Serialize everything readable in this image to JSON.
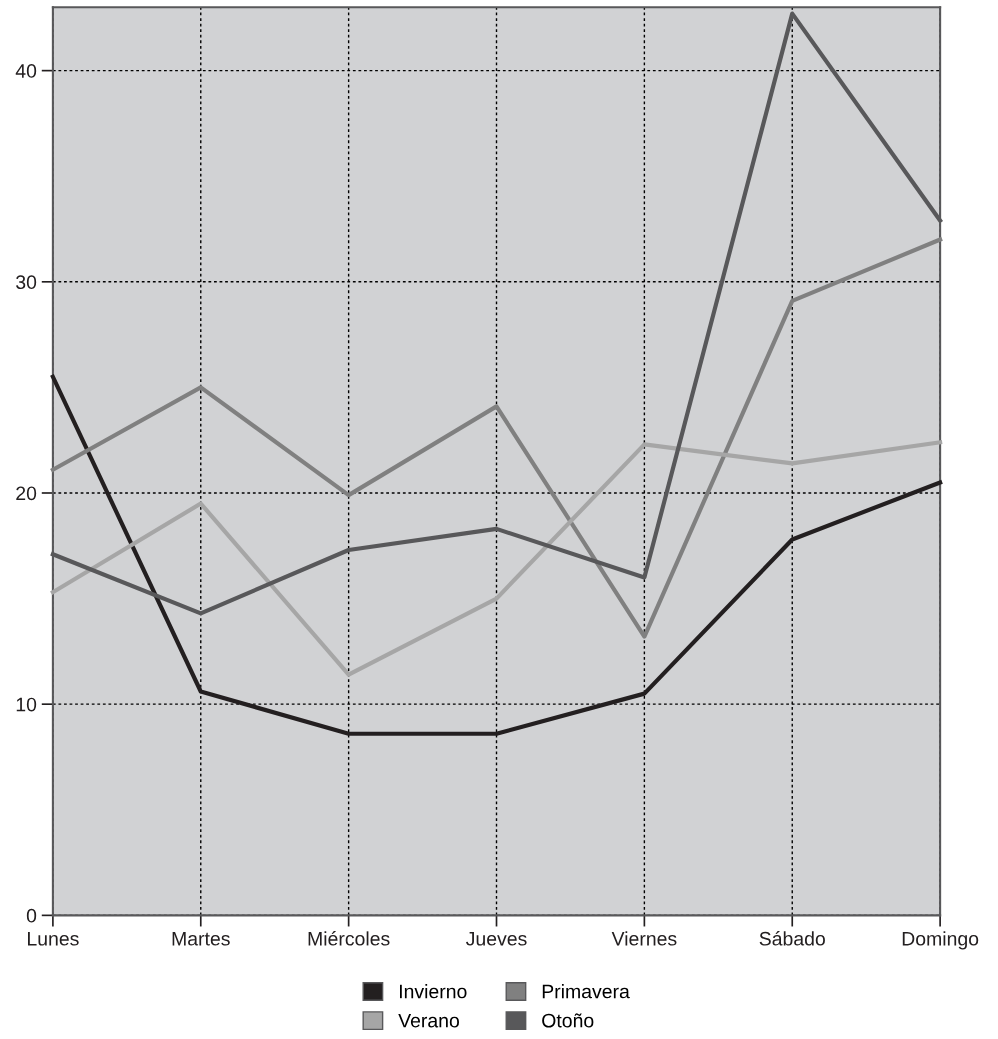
{
  "chart_data": {
    "type": "line",
    "categories": [
      "Lunes",
      "Martes",
      "Miércoles",
      "Jueves",
      "Viernes",
      "Sábado",
      "Domingo"
    ],
    "series": [
      {
        "name": "Invierno",
        "color": "#231f20",
        "values": [
          25.5,
          10.6,
          8.6,
          8.6,
          10.5,
          17.8,
          20.5
        ]
      },
      {
        "name": "Primavera",
        "color": "#808080",
        "values": [
          21.1,
          25.0,
          19.9,
          24.1,
          13.2,
          29.1,
          32.0
        ]
      },
      {
        "name": "Verano",
        "color": "#a6a6a6",
        "values": [
          15.3,
          19.5,
          11.4,
          15.0,
          22.3,
          21.4,
          22.4
        ]
      },
      {
        "name": "Otoño",
        "color": "#58585a",
        "values": [
          17.1,
          14.3,
          17.3,
          18.3,
          16.0,
          42.7,
          32.9
        ]
      }
    ],
    "ylim": [
      0,
      43
    ],
    "yticks": [
      0,
      10,
      20,
      30,
      40
    ],
    "grid": true,
    "legend": "bottom",
    "marker": "none",
    "line_style": "solid"
  }
}
